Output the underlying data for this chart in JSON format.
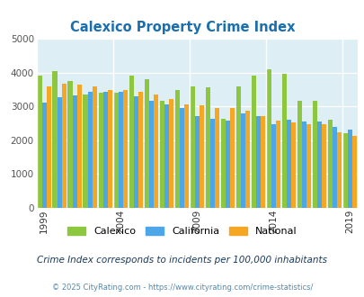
{
  "title": "Calexico Property Crime Index",
  "title_color": "#1a6faf",
  "subtitle": "Crime Index corresponds to incidents per 100,000 inhabitants",
  "subtitle_color": "#1a3a5c",
  "copyright": "© 2025 CityRating.com - https://www.cityrating.com/crime-statistics/",
  "copyright_color": "#5588aa",
  "years": [
    1999,
    2000,
    2001,
    2002,
    2003,
    2004,
    2005,
    2006,
    2007,
    2008,
    2009,
    2010,
    2011,
    2012,
    2013,
    2014,
    2015,
    2016,
    2017,
    2018,
    2019
  ],
  "calexico": [
    3900,
    4050,
    3750,
    3350,
    3400,
    3400,
    3900,
    3800,
    3150,
    3480,
    3600,
    3550,
    2640,
    3580,
    3900,
    4100,
    3950,
    3150,
    3150,
    2600,
    2200
  ],
  "california": [
    3100,
    3280,
    3330,
    3420,
    3420,
    3420,
    3300,
    3170,
    3050,
    2950,
    2720,
    2640,
    2580,
    2780,
    2700,
    2480,
    2600,
    2540,
    2560,
    2390,
    2320
  ],
  "national": [
    3600,
    3670,
    3640,
    3600,
    3490,
    3490,
    3440,
    3340,
    3220,
    3060,
    3040,
    2960,
    2940,
    2870,
    2720,
    2570,
    2520,
    2480,
    2460,
    2220,
    2120
  ],
  "color_calexico": "#8dc63f",
  "color_california": "#4da6e8",
  "color_national": "#f5a623",
  "ylim": [
    0,
    5000
  ],
  "yticks": [
    0,
    1000,
    2000,
    3000,
    4000,
    5000
  ],
  "bg_color": "#deeef5",
  "xlabel_ticks": [
    1999,
    2004,
    2009,
    2014,
    2019
  ],
  "legend_labels": [
    "Calexico",
    "California",
    "National"
  ]
}
